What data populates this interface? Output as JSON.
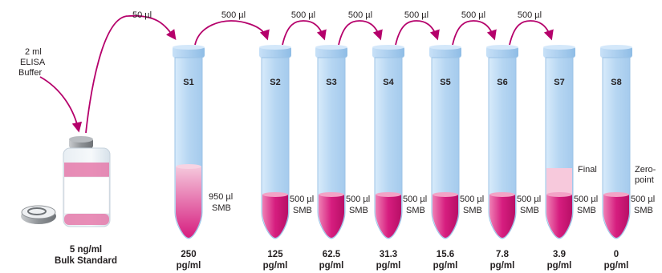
{
  "colors": {
    "arrow": "#b5006b",
    "tube_fill": "#bfdcf5",
    "tube_edge": "#9cc3e6",
    "liquid": "#d61d7f",
    "liquid_light": "#f1b8d3"
  },
  "bulk": {
    "buffer_label": [
      "2 ml",
      "ELISA",
      "Buffer"
    ],
    "concentration": "5 ng/ml",
    "name": "Bulk Standard"
  },
  "transfers": [
    "50 µl",
    "500 µl",
    "500 µl",
    "500 µl",
    "500 µl",
    "500 µl",
    "500 µl"
  ],
  "tubes": [
    {
      "id": "S1",
      "volume": "950 µl",
      "diluent": "SMB",
      "value": "250",
      "unit": "pg/ml",
      "note": ""
    },
    {
      "id": "S2",
      "volume": "500 µl",
      "diluent": "SMB",
      "value": "125",
      "unit": "pg/ml",
      "note": ""
    },
    {
      "id": "S3",
      "volume": "500 µl",
      "diluent": "SMB",
      "value": "62.5",
      "unit": "pg/ml",
      "note": ""
    },
    {
      "id": "S4",
      "volume": "500 µl",
      "diluent": "SMB",
      "value": "31.3",
      "unit": "pg/ml",
      "note": ""
    },
    {
      "id": "S5",
      "volume": "500 µl",
      "diluent": "SMB",
      "value": "15.6",
      "unit": "pg/ml",
      "note": ""
    },
    {
      "id": "S6",
      "volume": "500 µl",
      "diluent": "SMB",
      "value": "7.8",
      "unit": "pg/ml",
      "note": ""
    },
    {
      "id": "S7",
      "volume": "500 µl",
      "diluent": "SMB",
      "value": "3.9",
      "unit": "pg/ml",
      "note": "Final"
    },
    {
      "id": "S8",
      "volume": "500 µl",
      "diluent": "SMB",
      "value": "0",
      "unit": "pg/ml",
      "note": "Zero-\npoint"
    }
  ]
}
